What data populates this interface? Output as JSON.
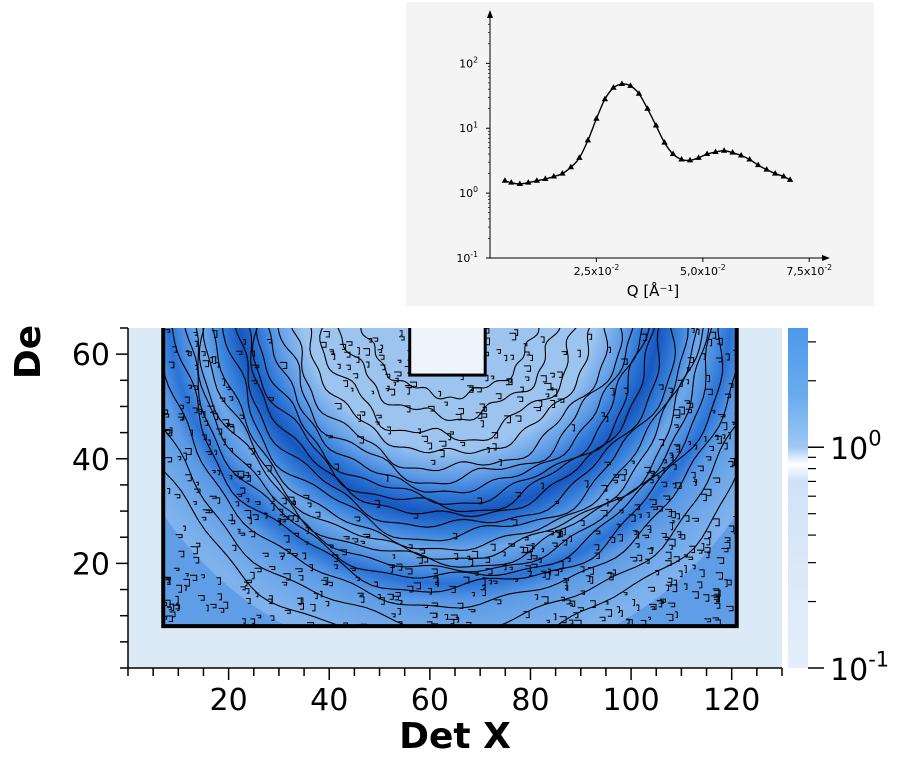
{
  "chart_data": [
    {
      "type": "line",
      "title": "",
      "xlabel": "Q [Å⁻¹]",
      "ylabel": "",
      "y_scale": "log",
      "grid": false,
      "marker": "triangle",
      "xlim": [
        0.0,
        0.078
      ],
      "ylim": [
        0.1,
        500
      ],
      "x_ticks": [
        {
          "value": 0.025,
          "mant": "2,5x10",
          "exp": "-2"
        },
        {
          "value": 0.05,
          "mant": "5,0x10",
          "exp": "-2"
        },
        {
          "value": 0.075,
          "mant": "7,5x10",
          "exp": "-2"
        }
      ],
      "y_ticks": [
        {
          "value": 0.1,
          "mant": "10",
          "exp": "-1"
        },
        {
          "value": 1,
          "mant": "10",
          "exp": "0"
        },
        {
          "value": 10,
          "mant": "10",
          "exp": "1"
        },
        {
          "value": 100,
          "mant": "10",
          "exp": "2"
        }
      ],
      "series": [
        {
          "x": [
            0.0035,
            0.005,
            0.007,
            0.009,
            0.011,
            0.013,
            0.015,
            0.017,
            0.019,
            0.021,
            0.023,
            0.025,
            0.027,
            0.029,
            0.031,
            0.033,
            0.035,
            0.037,
            0.039,
            0.041,
            0.043,
            0.045,
            0.047,
            0.049,
            0.051,
            0.053,
            0.055,
            0.057,
            0.059,
            0.061,
            0.063,
            0.065,
            0.067,
            0.069,
            0.0705
          ],
          "y": [
            1.55,
            1.45,
            1.38,
            1.45,
            1.55,
            1.65,
            1.8,
            2.0,
            2.5,
            3.5,
            6.5,
            14,
            28,
            42,
            48,
            45,
            34,
            20,
            11,
            6.0,
            4.0,
            3.3,
            3.2,
            3.5,
            4.0,
            4.3,
            4.5,
            4.2,
            3.8,
            3.3,
            2.7,
            2.3,
            2.0,
            1.8,
            1.6
          ]
        }
      ]
    },
    {
      "type": "heatmap",
      "title": "",
      "xlabel": "Det X",
      "ylabel": "De",
      "xlim": [
        0,
        130
      ],
      "ylim": [
        0,
        65
      ],
      "x_ticks": [
        20,
        40,
        60,
        80,
        100,
        120
      ],
      "y_ticks": [
        20,
        40,
        60
      ],
      "colormap": "blue",
      "contours": true,
      "beam_center": [
        64,
        70
      ],
      "ring_radii": [
        39,
        48,
        55
      ],
      "detector_region": {
        "x": [
          7,
          121
        ],
        "y": [
          8,
          65
        ]
      },
      "beamstop": {
        "x": [
          56,
          71
        ],
        "y": [
          56,
          65
        ]
      },
      "colorbar": {
        "scale": "log",
        "ticks": [
          {
            "value": 1,
            "mant": "10",
            "exp": "0"
          },
          {
            "value": 0.1,
            "mant": "10",
            "exp": "-1"
          }
        ]
      }
    }
  ],
  "colors": {
    "accent": "#1e64c8",
    "pale": "#dceaf8",
    "contour": "#000000"
  }
}
